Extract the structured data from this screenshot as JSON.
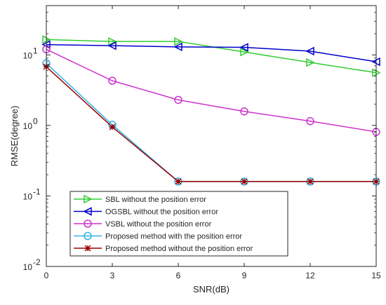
{
  "chart_data": {
    "type": "line",
    "title": "",
    "xlabel": "SNR(dB)",
    "ylabel": "RMSE(degree)",
    "x": [
      0,
      3,
      6,
      9,
      12,
      15
    ],
    "xticks": [
      "0",
      "3",
      "6",
      "9",
      "12",
      "15"
    ],
    "xlim": [
      0,
      15
    ],
    "ylim": [
      0.01,
      50
    ],
    "yscale": "log",
    "yticks": [
      {
        "value": 0.01,
        "base": "10",
        "exp": "-2"
      },
      {
        "value": 0.1,
        "base": "10",
        "exp": "-1"
      },
      {
        "value": 1,
        "base": "10",
        "exp": "0"
      },
      {
        "value": 10,
        "base": "10",
        "exp": "1"
      }
    ],
    "grid": false,
    "legend_position": "bottom-left",
    "series": [
      {
        "name": "SBL without the position error",
        "color": "#33cc33",
        "marker": "triangle-right",
        "values": [
          16.5,
          15.5,
          15.5,
          11.0,
          7.8,
          5.6
        ]
      },
      {
        "name": "OGSBL without the position error",
        "color": "#0000cc",
        "marker": "triangle-left",
        "values": [
          14.0,
          13.5,
          13.0,
          12.8,
          11.3,
          8.0
        ]
      },
      {
        "name": "VSBL without the position error",
        "color": "#cc33cc",
        "marker": "circle",
        "values": [
          12.0,
          4.3,
          2.3,
          1.58,
          1.15,
          0.81
        ]
      },
      {
        "name": "Proposed method with the position error",
        "color": "#33b2e6",
        "marker": "circle",
        "values": [
          7.6,
          1.02,
          0.16,
          0.16,
          0.16,
          0.16
        ]
      },
      {
        "name": "Proposed method without the position error",
        "color": "#990000",
        "marker": "star",
        "values": [
          6.8,
          0.95,
          0.16,
          0.16,
          0.16,
          0.16
        ]
      }
    ]
  }
}
